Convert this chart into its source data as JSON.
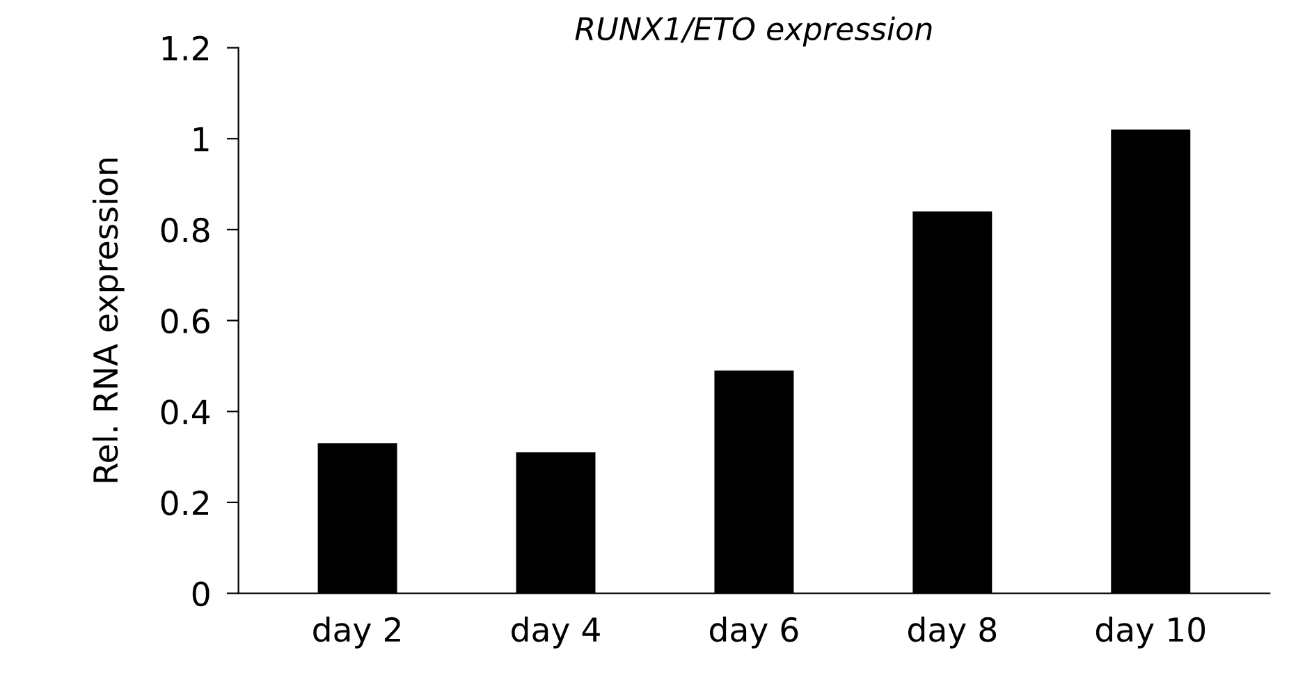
{
  "chart_data": {
    "type": "bar",
    "title": "RUNX1/ETO expression",
    "ylabel": "Rel. RNA expression",
    "categories": [
      "day 2",
      "day 4",
      "day 6",
      "day 8",
      "day 10"
    ],
    "values": [
      0.33,
      0.31,
      0.49,
      0.84,
      1.02
    ],
    "color": "#000000",
    "ylim": [
      0,
      1.2
    ],
    "yticks": [
      0,
      0.2,
      0.4,
      0.6,
      0.8,
      1,
      1.2
    ],
    "grid": false,
    "legend": false
  }
}
